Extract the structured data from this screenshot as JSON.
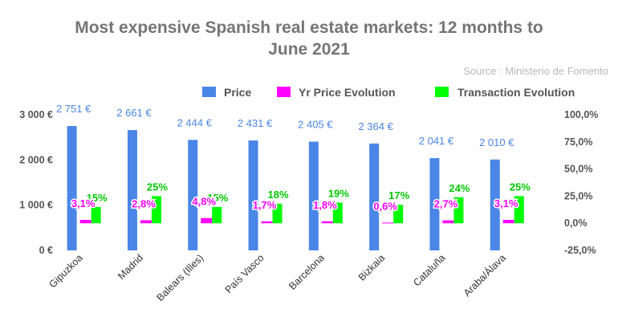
{
  "chart_data": {
    "type": "bar",
    "title_line1": "Most expensive Spanish real estate markets: 12 months to",
    "title_line2": "June 2021",
    "source": "Source : Ministerio de Fomento",
    "categories": [
      "Gipuzkoa",
      "Madrid",
      "Balears (Illes)",
      "País Vasco",
      "Barcelona",
      "Bizkaia",
      "Cataluña",
      "Araba/Álava"
    ],
    "series": [
      {
        "name": "Price",
        "axis": "left",
        "color": "#4a86e8",
        "values": [
          2751,
          2661,
          2444,
          2431,
          2405,
          2364,
          2041,
          2010
        ],
        "labels": [
          "2 751 €",
          "2 661 €",
          "2 444 €",
          "2 431 €",
          "2 405 €",
          "2 364 €",
          "2 041 €",
          "2 010 €"
        ]
      },
      {
        "name": "Yr Price Evolution",
        "axis": "right",
        "color": "#ff00ff",
        "values": [
          3.1,
          2.8,
          4.8,
          1.7,
          1.8,
          0.6,
          2.7,
          3.1
        ],
        "labels": [
          "3,1%",
          "2,8%",
          "4,8%",
          "1,7%",
          "1,8%",
          "0,6%",
          "2,7%",
          "3,1%"
        ]
      },
      {
        "name": "Transaction Evolution",
        "axis": "right",
        "color": "#00ff00",
        "values": [
          15,
          25,
          15,
          18,
          19,
          17,
          24,
          25
        ],
        "labels": [
          "15%",
          "25%",
          "15%",
          "18%",
          "19%",
          "17%",
          "24%",
          "25%"
        ]
      }
    ],
    "left_axis": {
      "ylim": [
        0,
        3000
      ],
      "ticks": [
        0,
        1000,
        2000,
        3000
      ],
      "tick_labels": [
        "0 €",
        "1 000 €",
        "2 000 €",
        "3 000 €"
      ]
    },
    "right_axis": {
      "ylim": [
        -25,
        100
      ],
      "ticks": [
        -25,
        0,
        25,
        50,
        75,
        100
      ],
      "tick_labels": [
        "-25,0%",
        "0,0%",
        "25,0%",
        "50,0%",
        "75,0%",
        "100,0%"
      ]
    },
    "grid": false,
    "legend_position": "top-right",
    "label_colors": {
      "price": "#4a86e8",
      "yr": "#ff00ff",
      "tx": "#00c800"
    }
  }
}
